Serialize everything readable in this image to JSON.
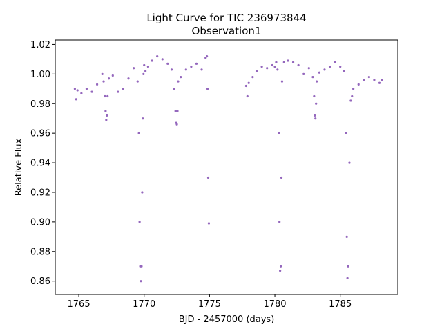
{
  "chart_data": {
    "type": "scatter",
    "title": "Light Curve for TIC 236973844",
    "subtitle": "Observation1",
    "xlabel": "BJD - 2457000 (days)",
    "ylabel": "Relative Flux",
    "xlim": [
      1763.2,
      1789.4
    ],
    "ylim": [
      0.851,
      1.023
    ],
    "xticks": [
      1765,
      1770,
      1775,
      1780,
      1785
    ],
    "xtick_labels": [
      "1765",
      "1770",
      "1775",
      "1780",
      "1785"
    ],
    "yticks": [
      0.86,
      0.88,
      0.9,
      0.92,
      0.94,
      0.96,
      0.98,
      1.0,
      1.02
    ],
    "ytick_labels": [
      "0.86",
      "0.88",
      "0.90",
      "0.92",
      "0.94",
      "0.96",
      "0.98",
      "1.00",
      "1.02"
    ],
    "grid": false,
    "legend": "none",
    "marker_color": "#9467bd",
    "series": [
      {
        "x": [
          1764.7,
          1764.8,
          1764.9,
          1765.2,
          1765.6,
          1766.0,
          1766.4,
          1766.8,
          1766.9,
          1767.0,
          1767.05,
          1767.1,
          1767.15,
          1767.2,
          1767.3,
          1767.6,
          1768.0,
          1768.4,
          1768.8,
          1769.2,
          1769.5,
          1769.6,
          1769.65,
          1769.7,
          1769.75,
          1769.8,
          1769.85,
          1769.9,
          1769.95,
          1770.0,
          1770.1,
          1770.3,
          1770.6,
          1771.0,
          1771.4,
          1771.8,
          1772.1,
          1772.3,
          1772.4,
          1772.45,
          1772.5,
          1772.55,
          1772.6,
          1772.8,
          1773.2,
          1773.6,
          1774.0,
          1774.4,
          1774.7,
          1774.8,
          1774.85,
          1774.9,
          1774.95
        ],
        "y": [
          0.99,
          0.983,
          0.989,
          0.987,
          0.99,
          0.988,
          0.993,
          1.0,
          0.995,
          0.985,
          0.975,
          0.969,
          0.972,
          0.985,
          0.997,
          0.999,
          0.988,
          0.99,
          0.997,
          1.004,
          0.995,
          0.96,
          0.9,
          0.87,
          0.86,
          0.87,
          0.92,
          0.97,
          1.0,
          1.006,
          1.002,
          1.005,
          1.009,
          1.012,
          1.01,
          1.007,
          1.003,
          0.99,
          0.975,
          0.967,
          0.966,
          0.975,
          0.995,
          0.998,
          1.003,
          1.005,
          1.007,
          1.003,
          1.011,
          1.012,
          0.99,
          0.93,
          0.899
        ]
      },
      {
        "x": [
          1777.8,
          1777.9,
          1778.0,
          1778.3,
          1778.6,
          1779.0,
          1779.4,
          1779.8,
          1780.0,
          1780.1,
          1780.2,
          1780.3,
          1780.35,
          1780.4,
          1780.45,
          1780.5,
          1780.55,
          1780.7,
          1781.0,
          1781.4,
          1781.8,
          1782.2,
          1782.6,
          1782.9,
          1783.0,
          1783.05,
          1783.1,
          1783.15,
          1783.2,
          1783.4,
          1783.8,
          1784.2,
          1784.6,
          1785.0,
          1785.3,
          1785.45,
          1785.5,
          1785.55,
          1785.6,
          1785.7,
          1785.8,
          1785.9,
          1786.0,
          1786.4,
          1786.8,
          1787.2,
          1787.6,
          1788.0,
          1788.2
        ],
        "y": [
          0.992,
          0.985,
          0.994,
          0.998,
          1.002,
          1.005,
          1.004,
          1.006,
          1.005,
          1.008,
          1.003,
          0.96,
          0.9,
          0.867,
          0.87,
          0.93,
          0.995,
          1.008,
          1.009,
          1.008,
          1.006,
          1.0,
          1.004,
          0.998,
          0.985,
          0.972,
          0.97,
          0.98,
          0.995,
          1.001,
          1.003,
          1.005,
          1.008,
          1.005,
          1.002,
          0.96,
          0.89,
          0.862,
          0.87,
          0.94,
          0.982,
          0.985,
          0.99,
          0.993,
          0.996,
          0.998,
          0.996,
          0.994,
          0.996
        ]
      }
    ]
  }
}
